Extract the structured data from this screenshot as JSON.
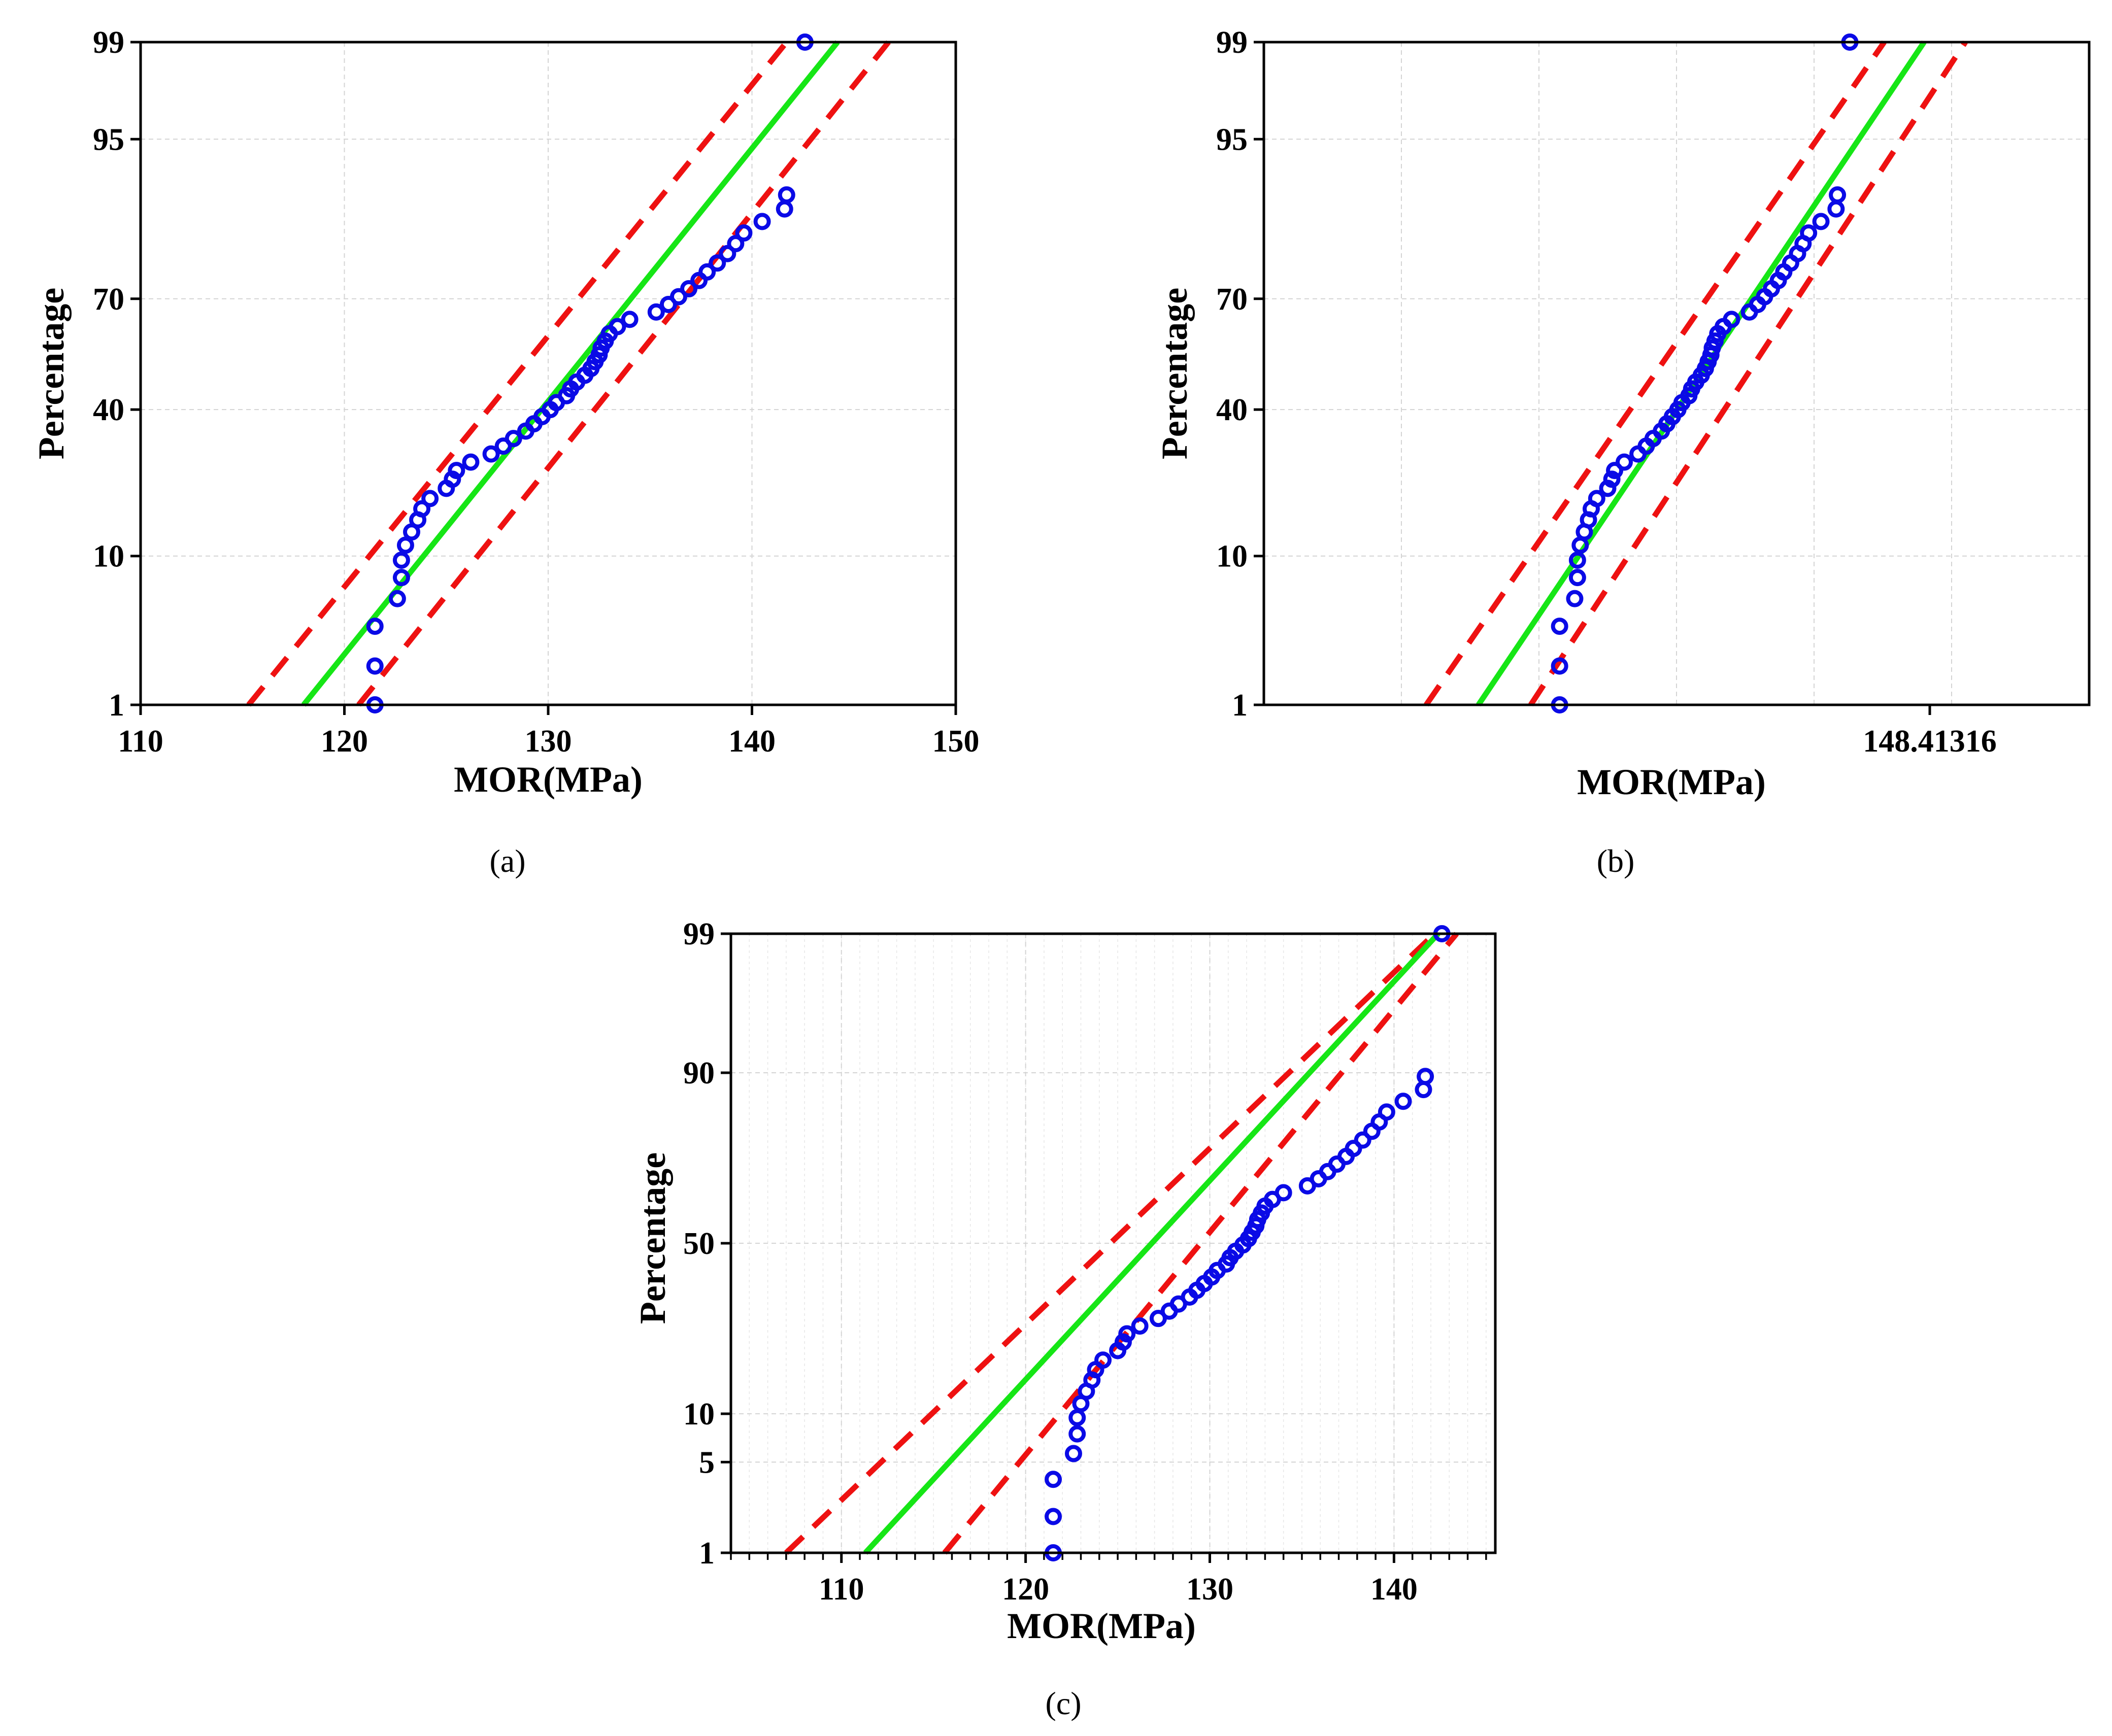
{
  "colors": {
    "points": "#0a0ae6",
    "fit": "#16e616",
    "ci": "#ee1111"
  },
  "chart_data": [
    {
      "id": "a",
      "type": "scatter",
      "subtype": "normal probability plot",
      "caption": "(a)",
      "xlabel": "MOR(MPa)",
      "ylabel": "Percentage",
      "xlim": [
        110,
        150
      ],
      "xticks": [
        110,
        120,
        130,
        140,
        150
      ],
      "ylim": [
        1,
        99
      ],
      "yticks": [
        1,
        10,
        40,
        70,
        95,
        99
      ],
      "fit_line": {
        "x": [
          118.0,
          144.2
        ],
        "p": [
          1,
          99
        ]
      },
      "ci_upper": {
        "x": [
          115.3,
          141.7
        ],
        "p": [
          1,
          99
        ]
      },
      "ci_lower": {
        "x": [
          120.7,
          146.7
        ],
        "p": [
          1,
          99
        ]
      },
      "points": {
        "x": [
          121.5,
          121.5,
          121.5,
          122.6,
          122.8,
          122.8,
          123.0,
          123.3,
          123.6,
          123.8,
          124.2,
          125.0,
          125.3,
          125.5,
          126.2,
          127.2,
          127.8,
          128.3,
          128.9,
          129.3,
          129.7,
          130.1,
          130.4,
          130.9,
          131.1,
          131.4,
          131.8,
          132.1,
          132.3,
          132.5,
          132.6,
          132.8,
          133.0,
          133.4,
          134.0,
          135.3,
          135.9,
          136.4,
          136.9,
          137.4,
          137.8,
          138.3,
          138.8,
          139.2,
          139.6,
          140.5,
          141.6,
          141.7,
          142.6
        ],
        "p": [
          1.0,
          2.0,
          3.8,
          5.7,
          7.6,
          9.5,
          11.4,
          13.3,
          15.2,
          17.1,
          19.0,
          21.0,
          22.9,
          24.8,
          26.7,
          28.6,
          30.5,
          32.4,
          34.3,
          36.2,
          38.1,
          40.0,
          41.9,
          43.8,
          45.7,
          47.6,
          49.5,
          51.4,
          53.3,
          55.2,
          57.1,
          59.0,
          61.0,
          62.9,
          64.8,
          66.7,
          68.6,
          70.5,
          72.4,
          74.3,
          76.2,
          78.1,
          80.0,
          81.9,
          83.8,
          85.7,
          87.6,
          89.5,
          99.0
        ]
      }
    },
    {
      "id": "b",
      "type": "scatter",
      "subtype": "normal probability plot",
      "caption": "(b)",
      "xlabel": "MOR(MPa)",
      "ylabel": "Percentage",
      "xlim": [
        100,
        160
      ],
      "xticks": [
        148.41316
      ],
      "xticklabels": [
        "148.41316"
      ],
      "ylim": [
        1,
        99
      ],
      "yticks": [
        1,
        10,
        40,
        70,
        95,
        99
      ],
      "fit_line": {
        "x": [
          115.6,
          148.0
        ],
        "p": [
          1,
          99
        ]
      },
      "ci_upper": {
        "x": [
          111.8,
          145.1
        ],
        "p": [
          1,
          99
        ]
      },
      "ci_lower": {
        "x": [
          119.4,
          151.0
        ],
        "p": [
          1,
          99
        ]
      },
      "points": {
        "x": [
          121.5,
          121.5,
          121.5,
          122.6,
          122.8,
          122.8,
          123.0,
          123.3,
          123.6,
          123.8,
          124.2,
          125.0,
          125.3,
          125.5,
          126.2,
          127.2,
          127.8,
          128.3,
          128.9,
          129.3,
          129.7,
          130.1,
          130.4,
          130.9,
          131.1,
          131.4,
          131.8,
          132.1,
          132.3,
          132.5,
          132.6,
          132.8,
          133.0,
          133.4,
          134.0,
          135.3,
          135.9,
          136.4,
          136.9,
          137.4,
          137.8,
          138.3,
          138.8,
          139.2,
          139.6,
          140.5,
          141.6,
          141.7,
          142.6
        ],
        "p": [
          1.0,
          2.0,
          3.8,
          5.7,
          7.6,
          9.5,
          11.4,
          13.3,
          15.2,
          17.1,
          19.0,
          21.0,
          22.9,
          24.8,
          26.7,
          28.6,
          30.5,
          32.4,
          34.3,
          36.2,
          38.1,
          40.0,
          41.9,
          43.8,
          45.7,
          47.6,
          49.5,
          51.4,
          53.3,
          55.2,
          57.1,
          59.0,
          61.0,
          62.9,
          64.8,
          66.7,
          68.6,
          70.5,
          72.4,
          74.3,
          76.2,
          78.1,
          80.0,
          81.9,
          83.8,
          85.7,
          87.6,
          89.5,
          99.0
        ]
      }
    },
    {
      "id": "c",
      "type": "scatter",
      "subtype": "normal probability plot",
      "caption": "(c)",
      "xlabel": "MOR(MPa)",
      "ylabel": "Percentage",
      "xlim": [
        104,
        145.5
      ],
      "xticks": [
        110,
        120,
        130,
        140
      ],
      "xminor_step": 1,
      "ylim": [
        1,
        99
      ],
      "yticks": [
        1,
        5,
        10,
        50,
        90,
        99
      ],
      "fit_line": {
        "x": [
          111.3,
          142.4
        ],
        "p": [
          1,
          99
        ]
      },
      "ci_upper": {
        "x": [
          107.0,
          142.2
        ],
        "p": [
          1,
          99
        ]
      },
      "ci_lower": {
        "x": [
          115.6,
          143.4
        ],
        "p": [
          1,
          99
        ]
      },
      "points": {
        "x": [
          121.5,
          121.5,
          121.5,
          122.6,
          122.8,
          122.8,
          123.0,
          123.3,
          123.6,
          123.8,
          124.2,
          125.0,
          125.3,
          125.5,
          126.2,
          127.2,
          127.8,
          128.3,
          128.9,
          129.3,
          129.7,
          130.1,
          130.4,
          130.9,
          131.1,
          131.4,
          131.8,
          132.1,
          132.3,
          132.5,
          132.6,
          132.8,
          133.0,
          133.4,
          134.0,
          135.3,
          135.9,
          136.4,
          136.9,
          137.4,
          137.8,
          138.3,
          138.8,
          139.2,
          139.6,
          140.5,
          141.6,
          141.7,
          142.6
        ],
        "p": [
          1.0,
          2.0,
          3.8,
          5.7,
          7.6,
          9.5,
          11.4,
          13.3,
          15.2,
          17.1,
          19.0,
          21.0,
          22.9,
          24.8,
          26.7,
          28.6,
          30.5,
          32.4,
          34.3,
          36.2,
          38.1,
          40.0,
          41.9,
          43.8,
          45.7,
          47.6,
          49.5,
          51.4,
          53.3,
          55.2,
          57.1,
          59.0,
          61.0,
          62.9,
          64.8,
          66.7,
          68.6,
          70.5,
          72.4,
          74.3,
          76.2,
          78.1,
          80.0,
          81.9,
          83.8,
          85.7,
          87.6,
          89.5,
          99.0
        ]
      }
    }
  ]
}
